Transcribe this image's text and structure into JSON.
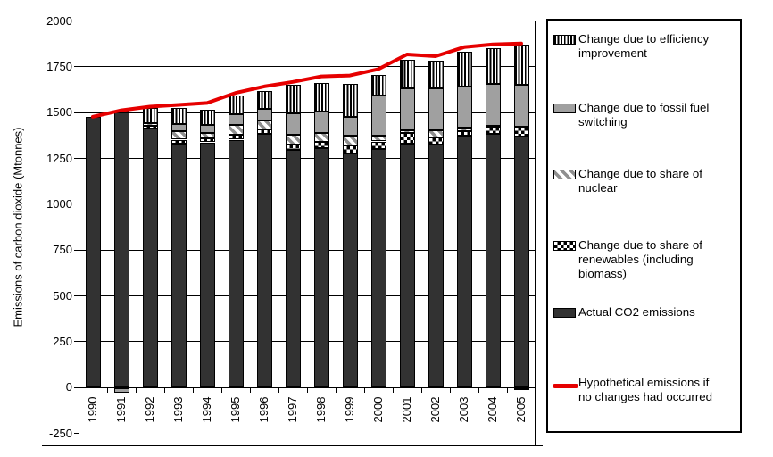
{
  "chart_data": {
    "type": "bar",
    "stacked": true,
    "ylabel": "Emissions of carbon dioxide (Mtonnes)",
    "ylim": [
      -250,
      2000
    ],
    "yticks": [
      2000,
      1750,
      1500,
      1250,
      1000,
      750,
      500,
      250,
      0,
      -250
    ],
    "grid": true,
    "legend_position": "right",
    "categories": [
      "1990",
      "1991",
      "1992",
      "1993",
      "1994",
      "1995",
      "1996",
      "1997",
      "1998",
      "1999",
      "2000",
      "2001",
      "2002",
      "2003",
      "2004",
      "2005"
    ],
    "series": [
      {
        "key": "actual",
        "name": "Actual CO2 emissions",
        "pattern": "solid-dark",
        "values": [
          1475,
          1500,
          1410,
          1330,
          1335,
          1350,
          1380,
          1295,
          1305,
          1275,
          1300,
          1330,
          1325,
          1370,
          1380,
          1365
        ]
      },
      {
        "key": "renewables",
        "name": "Change due to share of renewables (including biomass)",
        "pattern": "checker",
        "values": [
          0,
          0,
          15,
          20,
          20,
          25,
          25,
          30,
          32,
          45,
          40,
          55,
          35,
          25,
          40,
          55
        ]
      },
      {
        "key": "nuclear",
        "name": "Change due to share of nuclear",
        "pattern": "diagonal",
        "values": [
          0,
          0,
          15,
          45,
          30,
          55,
          50,
          50,
          48,
          50,
          32,
          15,
          40,
          20,
          5,
          -10
        ]
      },
      {
        "key": "fossil",
        "name": "Change due to fossil fuel switching",
        "pattern": "solid-gray",
        "values": [
          0,
          -25,
          0,
          40,
          45,
          60,
          65,
          120,
          118,
          105,
          220,
          230,
          230,
          225,
          230,
          230
        ]
      },
      {
        "key": "efficiency",
        "name": "Change due to efficiency improvement",
        "pattern": "vstripes",
        "values": [
          0,
          10,
          85,
          90,
          85,
          100,
          95,
          155,
          158,
          180,
          110,
          155,
          150,
          190,
          195,
          220
        ]
      }
    ],
    "line_series": {
      "name": "Hypothetical emissions if no changes had occurred",
      "color": "#e60000",
      "values": [
        1475,
        1510,
        1530,
        1540,
        1550,
        1605,
        1640,
        1665,
        1695,
        1700,
        1735,
        1815,
        1805,
        1855,
        1870,
        1875
      ]
    },
    "colors": {
      "actual": "#323232",
      "fossil": "#a0a0a0",
      "line": "#e60000",
      "axis": "#000000"
    }
  },
  "legend": {
    "items": [
      {
        "label": "Change due to efficiency\nimprovement"
      },
      {
        "label": "Change due to fossil fuel\nswitching"
      },
      {
        "label": "Change due to share of\nnuclear"
      },
      {
        "label": "Change due to share of\nrenewables (including\nbiomass)"
      },
      {
        "label": "Actual CO2 emissions"
      },
      {
        "label": "Hypothetical emissions if\nno changes had occurred"
      }
    ]
  }
}
